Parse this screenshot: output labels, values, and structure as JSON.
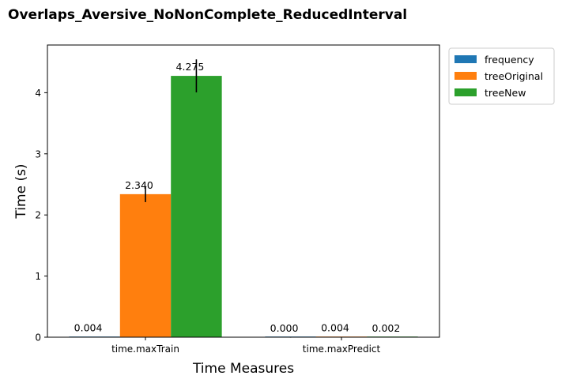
{
  "chart_data": {
    "type": "bar",
    "title": "Overlaps_Aversive_NoNonComplete_ReducedInterval",
    "xlabel": "Time Measures",
    "ylabel": "Time (s)",
    "categories": [
      "time.maxTrain",
      "time.maxPredict"
    ],
    "ylim": [
      0,
      4.78
    ],
    "yticks": [
      0,
      1,
      2,
      3,
      4
    ],
    "series": [
      {
        "name": "frequency",
        "color": "#1f77b4",
        "values": [
          0.004,
          0.0
        ],
        "errors": [
          0.0,
          0.0
        ],
        "labels": [
          "0.004",
          "0.000"
        ]
      },
      {
        "name": "treeOriginal",
        "color": "#ff7f0e",
        "values": [
          2.34,
          0.004
        ],
        "errors": [
          0.13,
          0.0
        ],
        "labels": [
          "2.340",
          "0.004"
        ]
      },
      {
        "name": "treeNew",
        "color": "#2ca02c",
        "values": [
          4.275,
          0.002
        ],
        "errors": [
          0.27,
          0.0
        ],
        "labels": [
          "4.275",
          "0.002"
        ]
      }
    ],
    "legend_position": "outside-top-right",
    "grid": false
  }
}
